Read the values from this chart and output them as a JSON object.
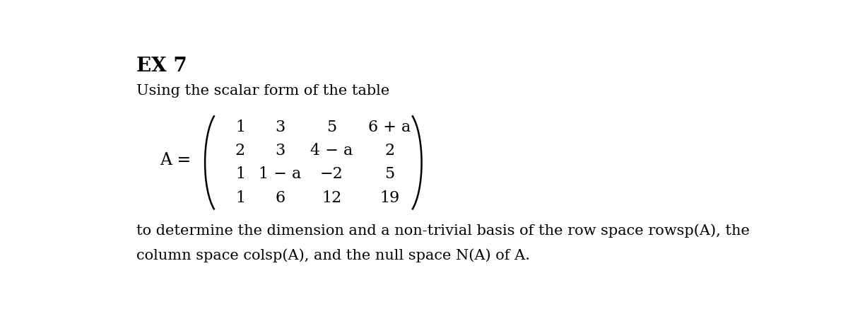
{
  "title": "EX 7",
  "subtitle": "Using the scalar form of the table",
  "matrix_label": "A =",
  "matrix_rows": [
    [
      "1",
      "3",
      "5",
      "6 + a"
    ],
    [
      "2",
      "3",
      "4 − a",
      "2"
    ],
    [
      "1",
      "1 − a",
      "−2",
      "5"
    ],
    [
      "1",
      "6",
      "12",
      "19"
    ]
  ],
  "footer_line1": "to determine the dimension and a non-trivial basis of the row space rowsp(A), the",
  "footer_line2": "column space colsp(A), and the null space N(A) of A.",
  "bg_color": "#ffffff",
  "text_color": "#000000",
  "title_fontsize": 20,
  "body_fontsize": 15,
  "matrix_fontsize": 16,
  "footer_fontsize": 15
}
